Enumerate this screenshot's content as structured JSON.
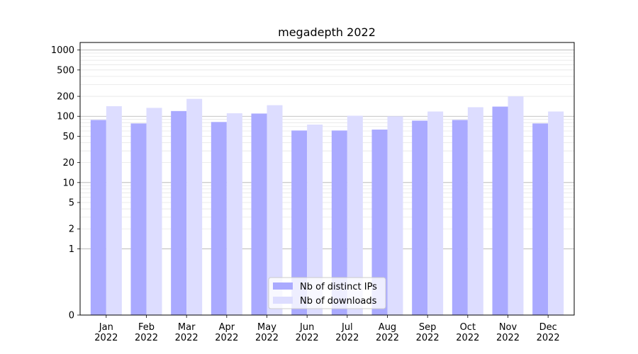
{
  "chart_data": {
    "type": "bar",
    "title": "megadepth 2022",
    "xlabel": "",
    "ylabel": "",
    "yscale": "symlog",
    "ylim": [
      0,
      1300
    ],
    "yticks": [
      0,
      1,
      2,
      5,
      10,
      20,
      50,
      100,
      200,
      500,
      1000
    ],
    "grid": "horizontal",
    "legend_position": "bottom-center",
    "categories": [
      "Jan\n2022",
      "Feb\n2022",
      "Mar\n2022",
      "Apr\n2022",
      "May\n2022",
      "Jun\n2022",
      "Jul\n2022",
      "Aug\n2022",
      "Sep\n2022",
      "Oct\n2022",
      "Nov\n2022",
      "Dec\n2022"
    ],
    "series": [
      {
        "name": "Nb of distinct IPs",
        "color": "#aaaaff",
        "values": [
          88,
          78,
          120,
          82,
          110,
          61,
          61,
          63,
          86,
          88,
          140,
          78
        ]
      },
      {
        "name": "Nb of downloads",
        "color": "#ddddff",
        "values": [
          142,
          134,
          183,
          111,
          147,
          75,
          102,
          100,
          118,
          137,
          200,
          118
        ]
      }
    ]
  }
}
